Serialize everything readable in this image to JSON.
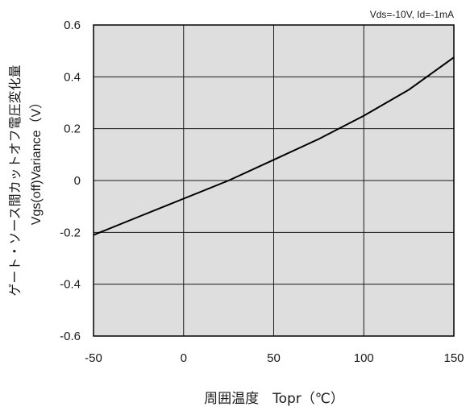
{
  "chart_data": {
    "type": "line",
    "annotation": "Vds=-10V, Id=-1mA",
    "xlabel": "周囲温度　Topr（℃）",
    "ylabel_jp": "ゲート・ソース間カットオフ電圧変化量",
    "ylabel_en": "Vgs(off)Variance（V）",
    "xlim": [
      -50,
      150
    ],
    "ylim": [
      -0.6,
      0.6
    ],
    "x_ticks": [
      "-50",
      "0",
      "50",
      "100",
      "150"
    ],
    "y_ticks": [
      "0.6",
      "0.4",
      "0.2",
      "0",
      "-0.2",
      "-0.4",
      "-0.6"
    ],
    "grid": true,
    "series": [
      {
        "x": [
          -50,
          -25,
          0,
          25,
          50,
          75,
          100,
          125,
          150
        ],
        "values": [
          -0.21,
          -0.14,
          -0.07,
          0.0,
          0.08,
          0.16,
          0.25,
          0.35,
          0.475
        ]
      }
    ],
    "colors": {
      "plot_bg": "#dedede",
      "line": "#000000",
      "grid": "#1a1a1a"
    }
  }
}
